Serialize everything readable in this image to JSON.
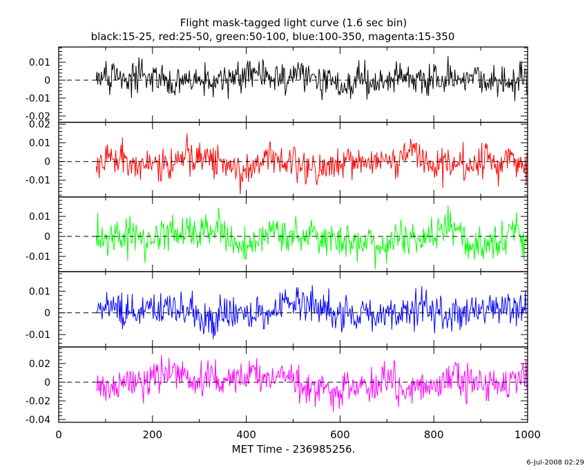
{
  "chart_data": {
    "type": "line",
    "title": "Flight mask-tagged light curve (1.6 sec bin)",
    "subtitle": "black:15-25, red:25-50, green:50-100, blue:100-350, magenta:15-350",
    "xlabel": "MET Time - 236985256.",
    "xlim": [
      0,
      1000
    ],
    "xticks": [
      "0",
      "200",
      "400",
      "600",
      "800",
      "1000"
    ],
    "xtick_values": [
      0,
      200,
      400,
      600,
      800,
      1000
    ],
    "bin_seconds": 1.6,
    "data_x_range": [
      80,
      1000
    ],
    "footer": "6-Jul-2008 02:29",
    "panels": [
      {
        "name": "black",
        "band": "15-25",
        "color": "#000000",
        "ylim": [
          -0.0235,
          0.0185
        ],
        "yticks": [
          "0.01",
          "0",
          "-0.01",
          "-0.02"
        ],
        "ytick_values": [
          0.01,
          0,
          -0.01,
          -0.02
        ],
        "approx_std": 0.0055,
        "seed": 11
      },
      {
        "name": "red",
        "band": "25-50",
        "color": "#ff0000",
        "ylim": [
          -0.019,
          0.021
        ],
        "yticks": [
          "0.02",
          "0.01",
          "0",
          "-0.01"
        ],
        "ytick_values": [
          0.02,
          0.01,
          0,
          -0.01
        ],
        "approx_std": 0.0058,
        "seed": 23
      },
      {
        "name": "green",
        "band": "50-100",
        "color": "#00ff00",
        "ylim": [
          -0.0176,
          0.0197
        ],
        "yticks": [
          "0.01",
          "0",
          "-0.01"
        ],
        "ytick_values": [
          0.01,
          0,
          -0.01
        ],
        "approx_std": 0.0055,
        "seed": 37
      },
      {
        "name": "blue",
        "band": "100-350",
        "color": "#0000ff",
        "ylim": [
          -0.0157,
          0.019
        ],
        "yticks": [
          "0.01",
          "0",
          "-0.01"
        ],
        "ytick_values": [
          0.01,
          0,
          -0.01
        ],
        "approx_std": 0.005,
        "seed": 41
      },
      {
        "name": "magenta",
        "band": "15-350",
        "color": "#ff00ff",
        "ylim": [
          -0.043,
          0.0378
        ],
        "yticks": [
          "0.02",
          "0",
          "-0.02",
          "-0.04"
        ],
        "ytick_values": [
          0.02,
          0,
          -0.02,
          -0.04
        ],
        "approx_std": 0.011,
        "seed": 53
      }
    ]
  }
}
